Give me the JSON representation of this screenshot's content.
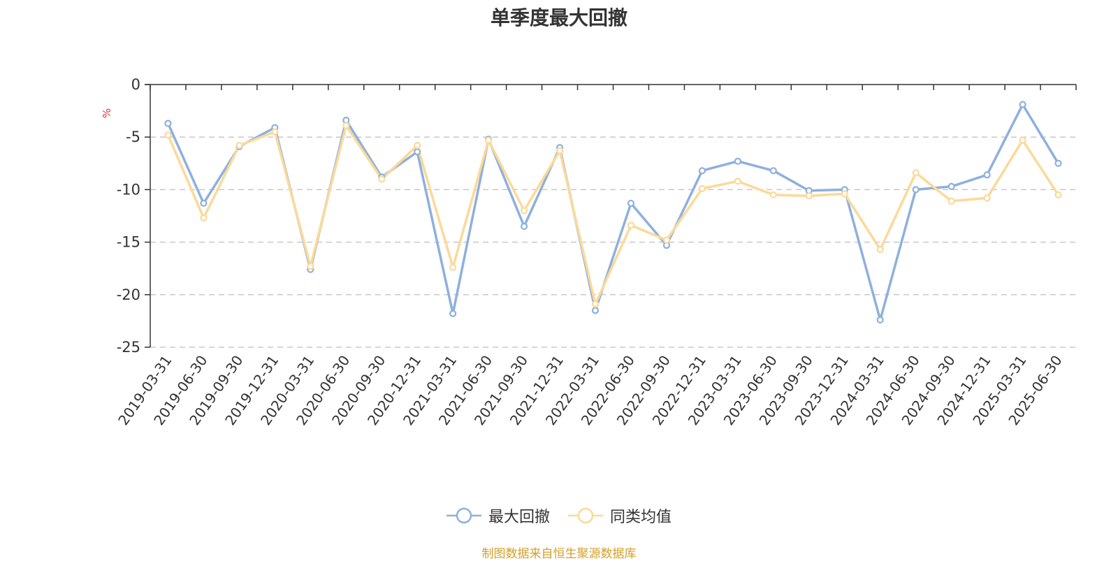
{
  "chart_data": {
    "type": "line",
    "title": "单季度最大回撤",
    "ylabel": "%",
    "ylim": [
      -25,
      0
    ],
    "yticks": [
      0,
      -5,
      -10,
      -15,
      -20,
      -25
    ],
    "grid": true,
    "legend_position": "bottom",
    "categories": [
      "2019-03-31",
      "2019-06-30",
      "2019-09-30",
      "2019-12-31",
      "2020-03-31",
      "2020-06-30",
      "2020-09-30",
      "2020-12-31",
      "2021-03-31",
      "2021-06-30",
      "2021-09-30",
      "2021-12-31",
      "2022-03-31",
      "2022-06-30",
      "2022-09-30",
      "2022-12-31",
      "2023-03-31",
      "2023-06-30",
      "2023-09-30",
      "2023-12-31",
      "2024-03-31",
      "2024-06-30",
      "2024-09-30",
      "2024-12-31",
      "2025-03-31",
      "2025-06-30"
    ],
    "series": [
      {
        "name": "最大回撤",
        "color": "#8eb0dd",
        "values": [
          -3.7,
          -11.3,
          -5.9,
          -4.1,
          -17.6,
          -3.4,
          -8.8,
          -6.4,
          -21.8,
          -5.2,
          -13.5,
          -6.0,
          -21.5,
          -11.3,
          -15.3,
          -8.2,
          -7.3,
          -8.2,
          -10.1,
          -10.0,
          -22.4,
          -10.0,
          -9.7,
          -8.6,
          -1.9,
          -7.5
        ]
      },
      {
        "name": "同类均值",
        "color": "#fcd999",
        "values": [
          -4.8,
          -12.7,
          -5.8,
          -4.5,
          -17.3,
          -3.9,
          -9.0,
          -5.8,
          -17.4,
          -5.3,
          -12.0,
          -6.3,
          -20.9,
          -13.4,
          -14.8,
          -9.9,
          -9.2,
          -10.5,
          -10.6,
          -10.4,
          -15.7,
          -8.4,
          -11.1,
          -10.8,
          -5.3,
          -10.5
        ]
      }
    ]
  },
  "source_note": "制图数据来自恒生聚源数据库"
}
